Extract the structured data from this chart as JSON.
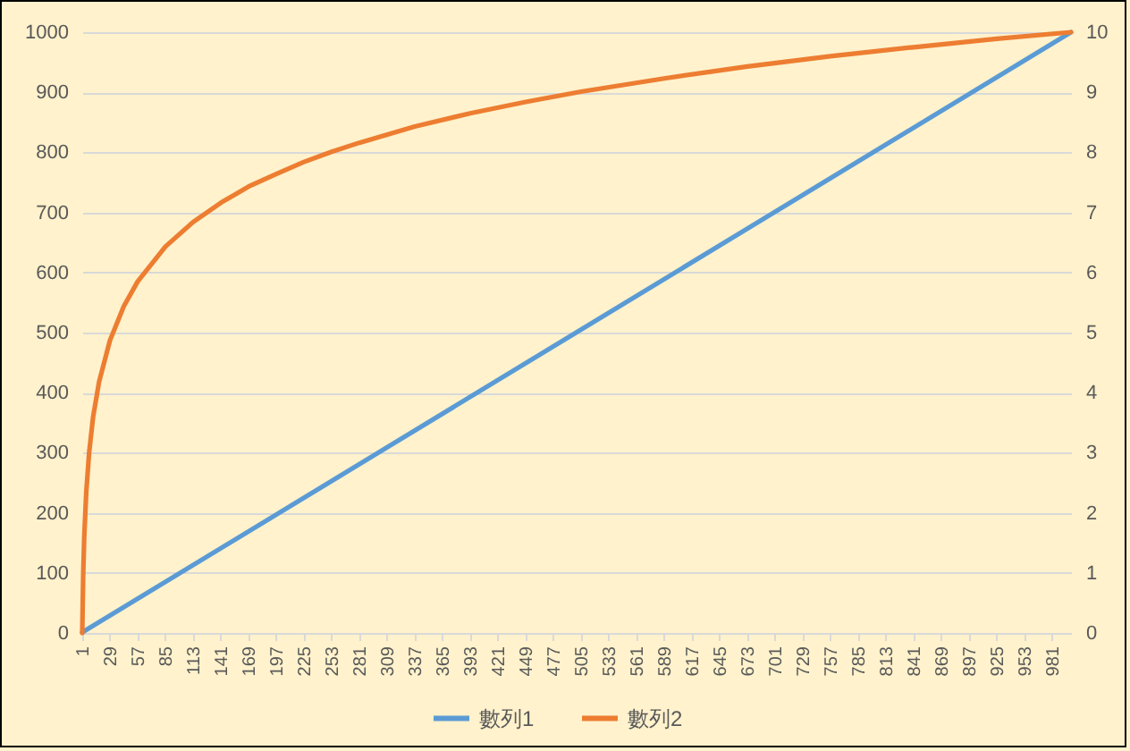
{
  "chart_data": {
    "type": "line",
    "xlim": [
      1,
      1000
    ],
    "xticks": [
      1,
      29,
      57,
      85,
      113,
      141,
      169,
      197,
      225,
      253,
      281,
      309,
      337,
      365,
      393,
      421,
      449,
      477,
      505,
      533,
      561,
      589,
      617,
      645,
      673,
      701,
      729,
      757,
      785,
      813,
      841,
      869,
      897,
      925,
      953,
      981
    ],
    "ylim": [
      0,
      1000
    ],
    "yticks": [
      0,
      100,
      200,
      300,
      400,
      500,
      600,
      700,
      800,
      900,
      1000
    ],
    "y2lim": [
      0,
      10
    ],
    "y2ticks": [
      0,
      1,
      2,
      3,
      4,
      5,
      6,
      7,
      8,
      9,
      10
    ],
    "series": [
      {
        "name": "數列1",
        "color": "#5b9bd5",
        "x": [
          1,
          250,
          500,
          750,
          1000
        ],
        "values": [
          1,
          250,
          500,
          750,
          1000
        ]
      },
      {
        "name": "數列2",
        "color": "#ed7d31",
        "axis": "y2",
        "x": [
          1,
          2,
          3,
          5,
          8,
          12,
          18,
          29,
          43,
          57,
          85,
          113,
          141,
          169,
          197,
          225,
          253,
          281,
          337,
          393,
          449,
          505,
          589,
          673,
          757,
          841,
          925,
          1000
        ],
        "values": [
          0,
          1.0,
          1.59,
          2.33,
          3.01,
          3.6,
          4.18,
          4.87,
          5.44,
          5.85,
          6.43,
          6.84,
          7.16,
          7.43,
          7.64,
          7.84,
          8.01,
          8.16,
          8.43,
          8.65,
          8.84,
          9.01,
          9.23,
          9.43,
          9.6,
          9.75,
          9.89,
          10
        ]
      }
    ],
    "grid": "y",
    "legend": "bottom",
    "marker": "none",
    "line_style": "solid"
  }
}
